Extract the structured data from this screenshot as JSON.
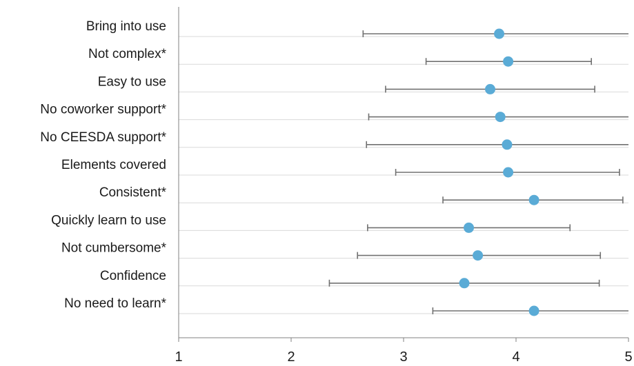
{
  "chart_data": {
    "type": "scatter",
    "title": "",
    "xlabel": "",
    "ylabel": "",
    "xlim": [
      1,
      5
    ],
    "xticks": [
      "1",
      "2",
      "3",
      "4",
      "5"
    ],
    "grid": "horizontal",
    "legend": "none",
    "colors": {
      "point": "#5aabd6",
      "error_bar": "#707070",
      "grid": "#d9d9d9",
      "axis": "#808080"
    },
    "categories": [
      "Bring into use",
      "Not complex*",
      "Easy to use",
      "No coworker support*",
      "No CEESDA support*",
      "Elements covered",
      "Consistent*",
      "Quickly learn to use",
      "Not cumbersome*",
      "Confidence",
      "No need to learn*"
    ],
    "series": [
      {
        "values": [
          3.85,
          3.93,
          3.77,
          3.86,
          3.92,
          3.93,
          4.16,
          3.58,
          3.66,
          3.54,
          4.16
        ],
        "error_low": [
          2.64,
          3.2,
          2.84,
          2.69,
          2.67,
          2.93,
          3.35,
          2.68,
          2.59,
          2.34,
          3.26
        ],
        "error_high": [
          5.0,
          4.67,
          4.7,
          5.0,
          5.0,
          4.92,
          4.95,
          4.48,
          4.75,
          4.74,
          5.0
        ]
      }
    ]
  }
}
